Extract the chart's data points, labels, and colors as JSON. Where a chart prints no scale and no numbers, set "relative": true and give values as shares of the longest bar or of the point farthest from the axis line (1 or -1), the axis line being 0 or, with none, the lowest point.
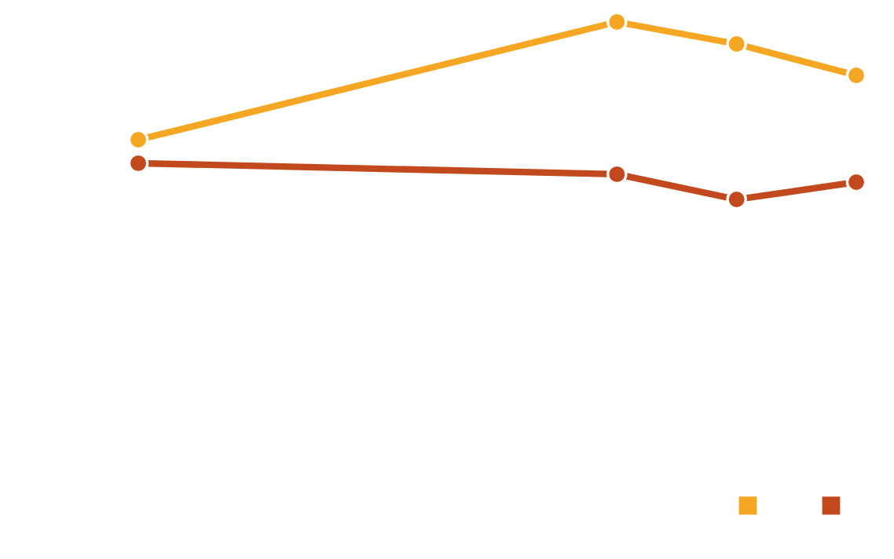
{
  "chart_data": {
    "type": "line",
    "relative": true,
    "categories": [
      null,
      null,
      null,
      null,
      null,
      null,
      null
    ],
    "series": [
      {
        "color": "#f5a623",
        "values": [
          0.336,
          null,
          null,
          null,
          1,
          0.876,
          0.699
        ]
      },
      {
        "color": "#c2491d",
        "values": [
          0.204,
          null,
          null,
          null,
          0.142,
          0,
          0.097
        ]
      }
    ],
    "marker": "circle",
    "line_style": "solid"
  }
}
